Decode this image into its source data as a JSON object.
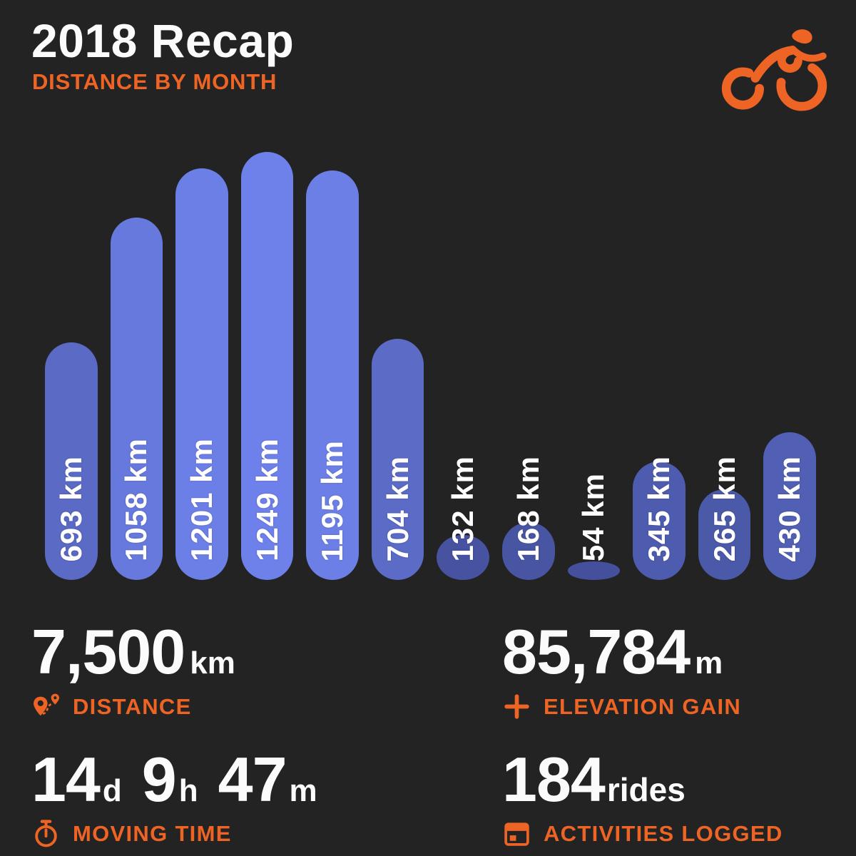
{
  "header": {
    "title": "2018 Recap",
    "subtitle": "DISTANCE BY MONTH",
    "logo_icon": "cyclist-icon"
  },
  "colors": {
    "background": "#232323",
    "accent_orange": "#ee6424",
    "text_white": "#fbfbfb",
    "bar_label_white": "#ffffff",
    "bar_color_low": "#424e98",
    "bar_color_high": "#6e81ea"
  },
  "chart_data": {
    "type": "bar",
    "orientation": "vertical",
    "title": "DISTANCE BY MONTH",
    "unit": "km",
    "bar_count": 12,
    "values": [
      693,
      1058,
      1201,
      1249,
      1195,
      704,
      132,
      168,
      54,
      345,
      265,
      430
    ],
    "labels": [
      "693 km",
      "1058 km",
      "1201 km",
      "1249 km",
      "1195 km",
      "704 km",
      "132 km",
      "168 km",
      "54 km",
      "345 km",
      "265 km",
      "430 km"
    ],
    "max_value": 1249,
    "axis_labels_shown": false,
    "grid": false,
    "legend": false
  },
  "stats": [
    {
      "id": "distance",
      "value": "7,500",
      "unit": "km",
      "label": "DISTANCE",
      "icon": "route-pin-icon"
    },
    {
      "id": "elevation_gain",
      "value": "85,784",
      "unit": "m",
      "label": "ELEVATION GAIN",
      "icon": "plus-icon"
    },
    {
      "id": "moving_time",
      "parts": [
        {
          "value": "14",
          "unit": "d"
        },
        {
          "value": "9",
          "unit": "h"
        },
        {
          "value": "47",
          "unit": "m"
        }
      ],
      "label": "MOVING TIME",
      "icon": "stopwatch-icon"
    },
    {
      "id": "activities",
      "value": "184",
      "unit": "rides",
      "label": "ACTIVITIES LOGGED",
      "icon": "calendar-icon"
    }
  ]
}
